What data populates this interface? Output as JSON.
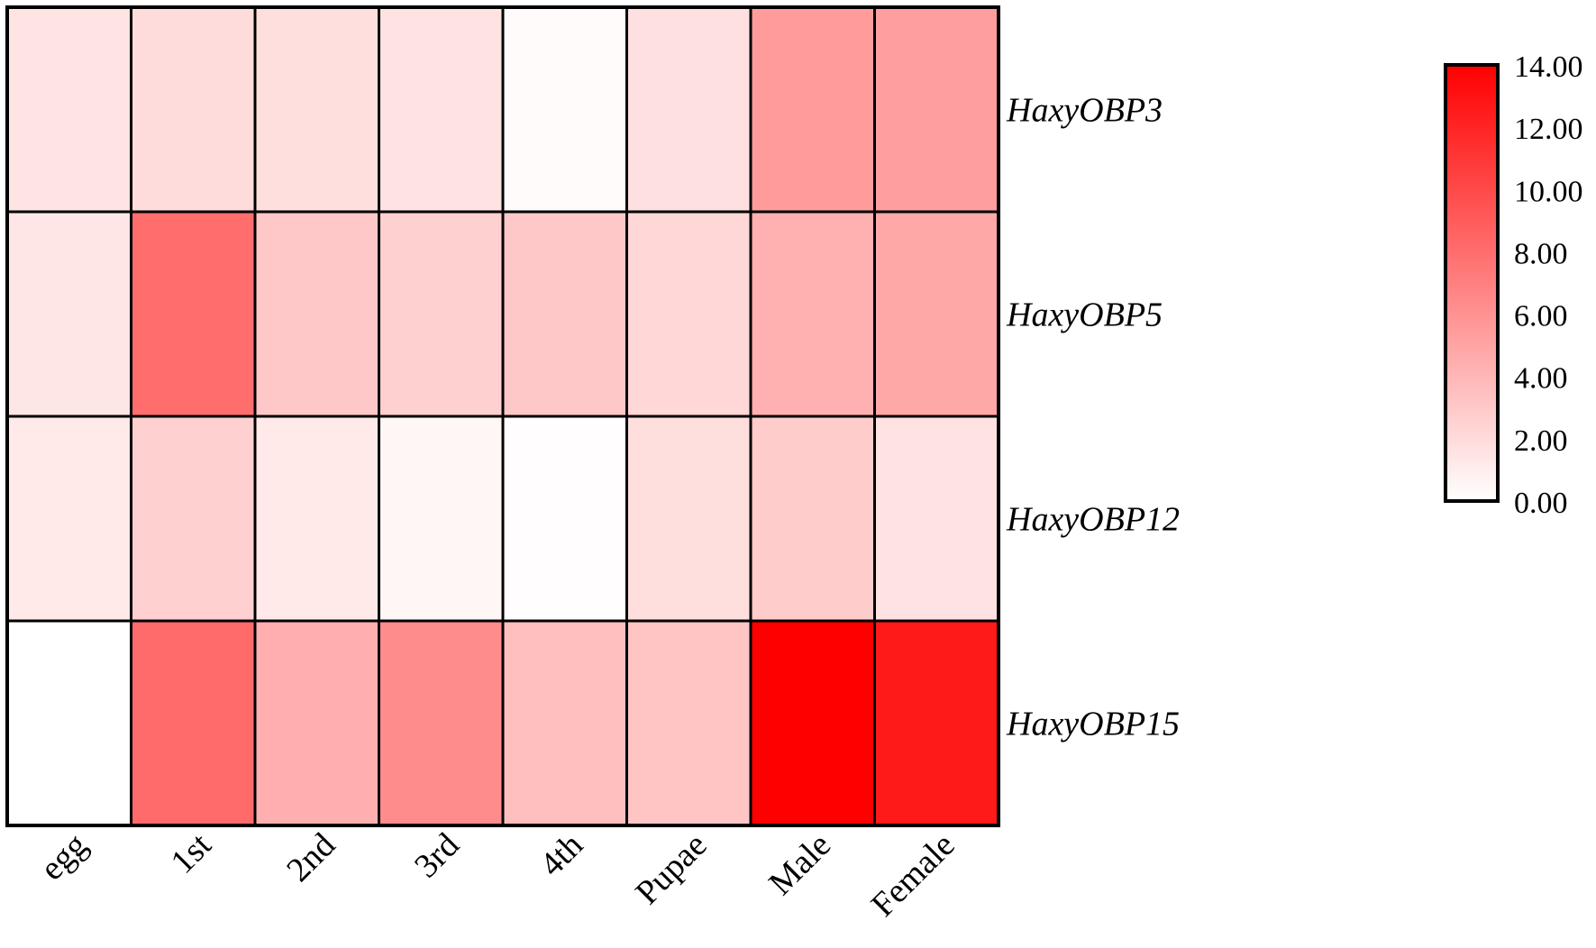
{
  "chart_data": {
    "type": "heatmap",
    "title": "",
    "xlabel": "",
    "ylabel": "",
    "columns": [
      "egg",
      "1st",
      "2nd",
      "3rd",
      "4th",
      "Pupae",
      "Male",
      "Female"
    ],
    "rows": [
      "HaxyOBP3",
      "HaxyOBP5",
      "HaxyOBP12",
      "HaxyOBP15"
    ],
    "values": [
      [
        1.5,
        1.9,
        1.8,
        1.6,
        0.2,
        1.7,
        5.5,
        5.3
      ],
      [
        1.4,
        8.0,
        3.0,
        2.6,
        3.0,
        2.2,
        4.3,
        4.8
      ],
      [
        1.2,
        2.6,
        1.2,
        0.5,
        0.1,
        1.8,
        2.8,
        1.6
      ],
      [
        0.0,
        8.2,
        4.4,
        6.3,
        3.5,
        3.2,
        14.0,
        12.6
      ]
    ],
    "colorscale": {
      "min": 0,
      "max": 14,
      "min_color": "#ffffff",
      "max_color": "#ff0000",
      "tick_labels": [
        "0.00",
        "2.00",
        "4.00",
        "6.00",
        "8.00",
        "10.00",
        "12.00",
        "14.00"
      ],
      "legend_placement": "top-right"
    },
    "grid": true
  }
}
